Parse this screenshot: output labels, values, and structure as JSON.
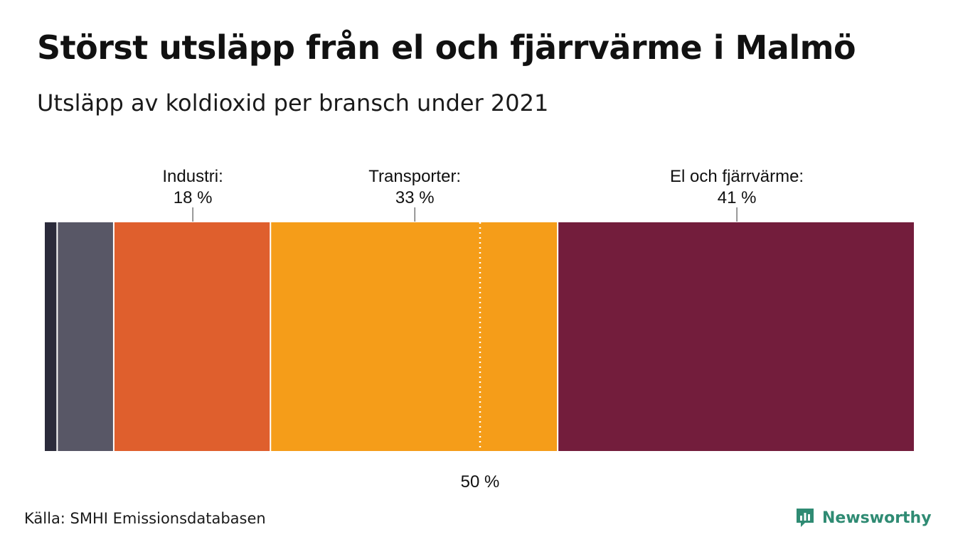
{
  "title": "Störst utsläpp från el och fjärrvärme i Malmö",
  "subtitle": "Utsläpp av koldioxid per bransch under 2021",
  "source": "Källa: SMHI Emissionsdatabasen",
  "logo": {
    "text": "Newsworthy",
    "icon": "newsworthy-logo-icon",
    "color": "#2f8b73"
  },
  "chart_data": {
    "type": "bar",
    "orientation": "horizontal-stacked-100",
    "unit": "%",
    "segments": [
      {
        "name": "",
        "value": 1.5,
        "color": "#2b2b3b",
        "label": "",
        "value_label": ""
      },
      {
        "name": "",
        "value": 6.5,
        "color": "#585766",
        "label": "",
        "value_label": ""
      },
      {
        "name": "Industri",
        "value": 18,
        "color": "#df5f2d",
        "label": "Industri:",
        "value_label": "18 %"
      },
      {
        "name": "Transporter",
        "value": 33,
        "color": "#f59d19",
        "label": "Transporter:",
        "value_label": "33 %"
      },
      {
        "name": "El och fjärrvärme",
        "value": 41,
        "color": "#731d3c",
        "label": "El och fjärrvärme:",
        "value_label": "41 %"
      }
    ],
    "reference_line": {
      "value": 50,
      "label": "50 %"
    },
    "xlim": [
      0,
      100
    ]
  }
}
